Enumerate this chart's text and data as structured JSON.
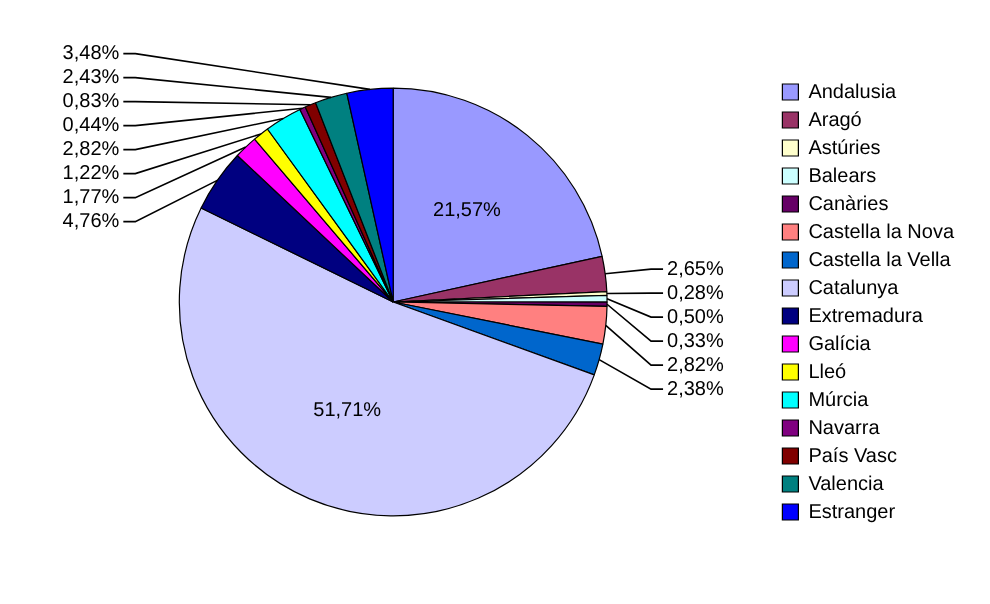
{
  "chart_data": {
    "type": "pie",
    "categories": [
      "Andalusia",
      "Aragó",
      "Astúries",
      "Balears",
      "Canàries",
      "Castella la Nova",
      "Castella la Vella",
      "Catalunya",
      "Extremadura",
      "Galícia",
      "Lleó",
      "Múrcia",
      "Navarra",
      "País Vasc",
      "Valencia",
      "Estranger"
    ],
    "values": [
      21.57,
      2.65,
      0.28,
      0.5,
      0.33,
      2.82,
      2.38,
      51.71,
      4.76,
      1.77,
      1.22,
      2.82,
      0.44,
      0.83,
      2.43,
      3.48
    ],
    "colors": [
      "#9999ff",
      "#993366",
      "#ffffcc",
      "#ccffff",
      "#660066",
      "#ff8080",
      "#0066cc",
      "#ccccff",
      "#000080",
      "#ff00ff",
      "#ffff00",
      "#00ffff",
      "#800080",
      "#800000",
      "#008080",
      "#0000ff"
    ],
    "value_labels": [
      "21,57%",
      "2,65%",
      "0,28%",
      "0,50%",
      "0,33%",
      "2,82%",
      "2,38%",
      "51,71%",
      "4,76%",
      "1,77%",
      "1,22%",
      "2,82%",
      "0,44%",
      "0,83%",
      "2,43%",
      "3,48%"
    ],
    "legend": "right"
  }
}
